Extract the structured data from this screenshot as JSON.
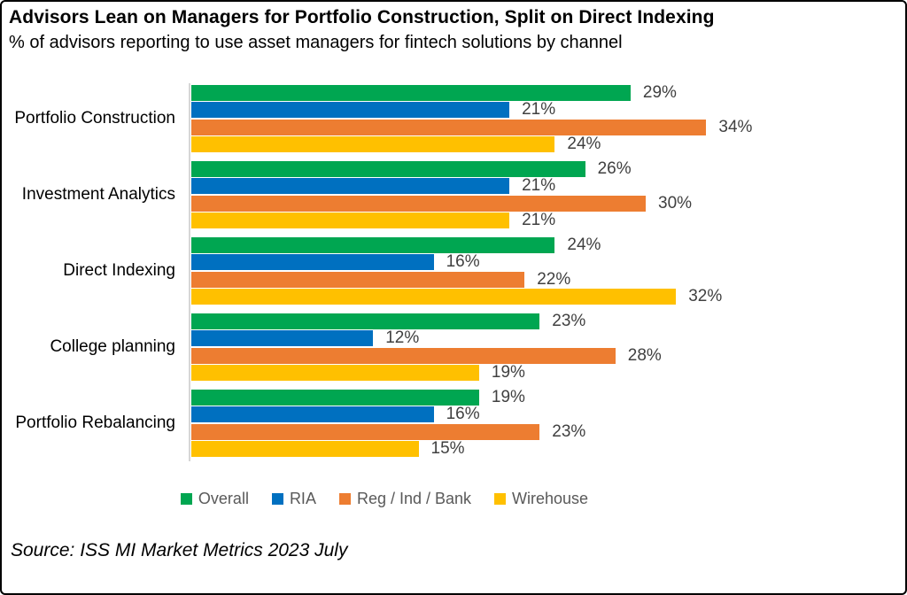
{
  "header": {
    "title": "Advisors Lean on Managers for Portfolio Construction, Split on Direct Indexing",
    "subtitle": "% of advisors reporting to use asset managers for fintech solutions by channel"
  },
  "chart_data": {
    "type": "bar",
    "orientation": "horizontal",
    "title": "Advisors Lean on Managers for Portfolio Construction, Split on Direct Indexing",
    "subtitle": "% of advisors reporting to use asset managers for fintech solutions by channel",
    "categories": [
      "Portfolio Construction",
      "Investment Analytics",
      "Direct Indexing",
      "College planning",
      "Portfolio Rebalancing"
    ],
    "series": [
      {
        "name": "Overall",
        "color": "#00A651",
        "values": [
          29,
          26,
          24,
          23,
          19
        ]
      },
      {
        "name": "RIA",
        "color": "#0070C0",
        "values": [
          21,
          21,
          16,
          12,
          16
        ]
      },
      {
        "name": "Reg / Ind / Bank",
        "color": "#ED7D31",
        "values": [
          34,
          30,
          22,
          28,
          23
        ]
      },
      {
        "name": "Wirehouse",
        "color": "#FFC000",
        "values": [
          24,
          21,
          32,
          19,
          15
        ]
      }
    ],
    "value_suffix": "%",
    "value_labels": true,
    "xlim": [
      0,
      40
    ],
    "grid": false,
    "legend_position": "bottom"
  },
  "footer": {
    "source": "Source: ISS MI Market Metrics 2023 July"
  }
}
